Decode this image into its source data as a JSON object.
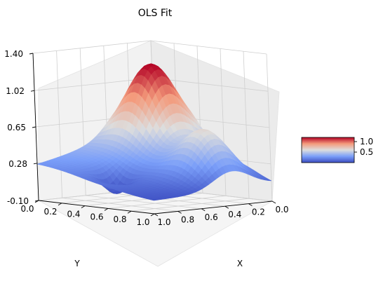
{
  "chart_data": {
    "type": "surface",
    "title": "OLS Fit",
    "xlabel": "X",
    "ylabel": "Y",
    "zlabel": "",
    "colormap": "coolwarm",
    "x_ticks": [
      "0.0",
      "0.2",
      "0.4",
      "0.6",
      "0.8",
      "1.0"
    ],
    "y_ticks": [
      "0.0",
      "0.2",
      "0.4",
      "0.6",
      "0.8",
      "1.0"
    ],
    "z_ticks": [
      "-0.10",
      "0.28",
      "0.65",
      "1.02",
      "1.40"
    ],
    "xlim": [
      0,
      1
    ],
    "ylim": [
      0,
      1
    ],
    "zlim": [
      -0.1,
      1.4
    ],
    "colorbar": {
      "ticks": [
        "0.5",
        "1.0"
      ],
      "range": [
        0.0,
        1.2
      ]
    },
    "surface_peak": {
      "x": 0.3,
      "y": 0.3,
      "z": 1.2
    },
    "grid": true
  }
}
